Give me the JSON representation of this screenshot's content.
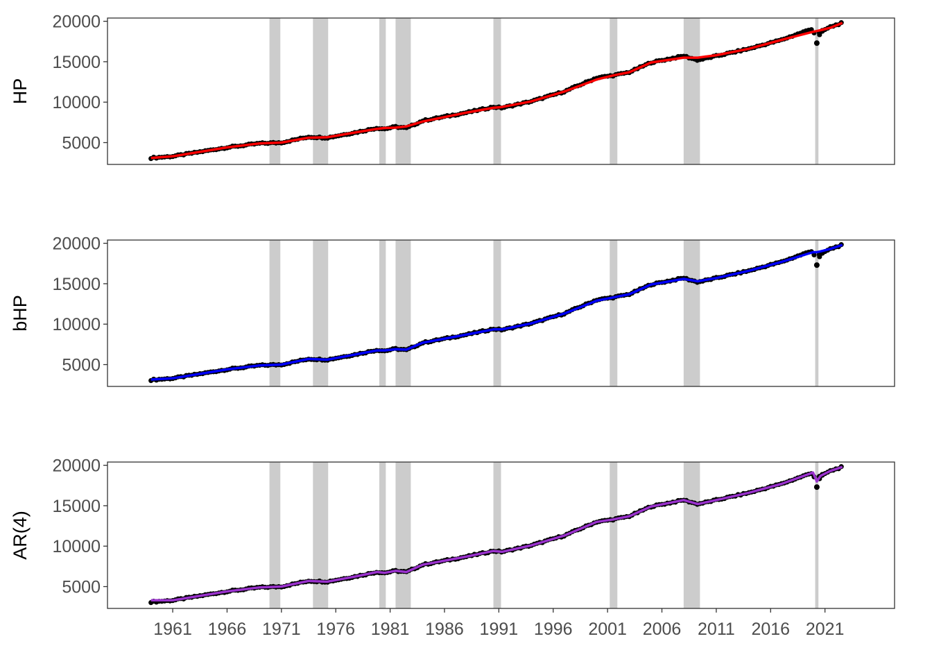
{
  "chart_data": [
    {
      "type": "line",
      "ylabel": "HP",
      "fit_color": "#ff0000",
      "ylim": [
        2300,
        20400
      ],
      "y_ticks": [
        5000,
        10000,
        15000,
        20000
      ],
      "y_tick_labels": [
        "5000",
        "10000",
        "15000",
        "20000"
      ]
    },
    {
      "type": "line",
      "ylabel": "bHP",
      "fit_color": "#0000ff",
      "ylim": [
        2300,
        20400
      ],
      "y_ticks": [
        5000,
        10000,
        15000,
        20000
      ],
      "y_tick_labels": [
        "5000",
        "10000",
        "15000",
        "20000"
      ]
    },
    {
      "type": "line",
      "ylabel": "AR(4)",
      "fit_color": "#9a32cd",
      "ylim": [
        2300,
        20400
      ],
      "y_ticks": [
        5000,
        10000,
        15000,
        20000
      ],
      "y_tick_labels": [
        "5000",
        "10000",
        "15000",
        "20000"
      ]
    }
  ],
  "shared": {
    "xlim": [
      1955.0,
      2027.4
    ],
    "x_ticks": [
      1961,
      1966,
      1971,
      1976,
      1981,
      1986,
      1991,
      1996,
      2001,
      2006,
      2011,
      2016,
      2021
    ],
    "x_tick_labels": [
      "1961",
      "1966",
      "1971",
      "1976",
      "1981",
      "1986",
      "1991",
      "1996",
      "2001",
      "2006",
      "2011",
      "2016",
      "2021"
    ],
    "observed_color": "#000000",
    "recession_color": "#cccccc",
    "recessions": [
      [
        1969.9,
        1970.9
      ],
      [
        1973.9,
        1975.3
      ],
      [
        1980.0,
        1980.6
      ],
      [
        1981.5,
        1982.9
      ],
      [
        1990.5,
        1991.2
      ],
      [
        2001.2,
        2001.9
      ],
      [
        2008.0,
        2009.5
      ],
      [
        2020.1,
        2020.4
      ]
    ],
    "series_x": [
      1959.0,
      1961.0,
      1966.0,
      1969.0,
      1971.0,
      1973.5,
      1975.2,
      1978.0,
      1979.8,
      1980.5,
      1981.5,
      1982.5,
      1984.0,
      1988.0,
      1990.5,
      1991.3,
      1994.0,
      1997.0,
      2000.0,
      2001.5,
      2003.0,
      2005.0,
      2008.0,
      2009.3,
      2011.0,
      2014.0,
      2017.0,
      2019.9,
      2020.25,
      2020.6,
      2021.5,
      2022.6
    ],
    "series_y": [
      3100,
      3300,
      4400,
      4900,
      5000,
      5700,
      5600,
      6300,
      6800,
      6700,
      6950,
      6800,
      7700,
      8700,
      9400,
      9300,
      10100,
      11300,
      13000,
      13300,
      13700,
      14900,
      15700,
      15200,
      15700,
      16600,
      17700,
      19100,
      17300,
      18700,
      19300,
      19800
    ],
    "covid_drop": [
      2020.25,
      17300
    ],
    "fit_hp_y": [
      3100,
      3300,
      4400,
      4900,
      5000,
      5600,
      5650,
      6300,
      6700,
      6800,
      6850,
      7000,
      7600,
      8700,
      9300,
      9400,
      10100,
      11300,
      12800,
      13300,
      13700,
      14900,
      15500,
      15500,
      15800,
      16600,
      17700,
      18700,
      18800,
      18900,
      19200,
      19800
    ],
    "fit_bhp_y": [
      3150,
      3300,
      4400,
      4900,
      5000,
      5700,
      5600,
      6300,
      6750,
      6750,
      6900,
      6850,
      7700,
      8700,
      9350,
      9350,
      10100,
      11300,
      12900,
      13300,
      13700,
      14900,
      15600,
      15300,
      15700,
      16600,
      17700,
      18900,
      18900,
      19000,
      19300,
      19800
    ],
    "fit_ar_y": [
      3300,
      3300,
      4400,
      4900,
      5000,
      5700,
      5600,
      6300,
      6800,
      6700,
      6950,
      6800,
      7700,
      8700,
      9400,
      9300,
      10100,
      11300,
      13000,
      13300,
      13700,
      14900,
      15700,
      15200,
      15700,
      16600,
      17700,
      19100,
      18000,
      18700,
      19300,
      19800
    ]
  }
}
